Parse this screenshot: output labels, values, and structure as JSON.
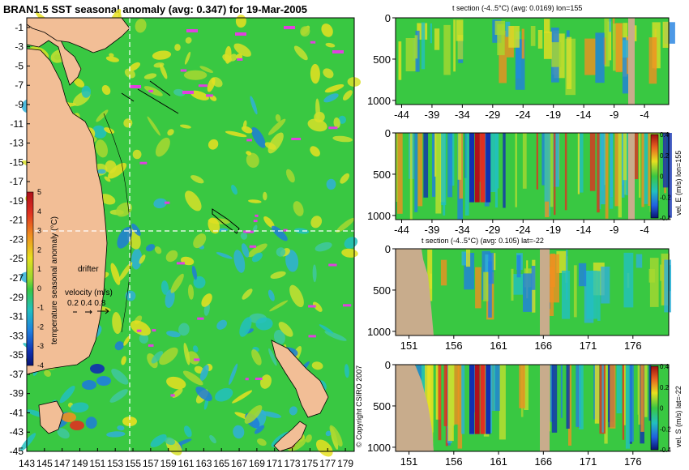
{
  "chart_data": [
    {
      "type": "heatmap",
      "title": "BRAN1.5 SST seasonal anomaly (avg: 0.347) for 19-Mar-2005",
      "y_ticks": [
        "-1",
        "-3",
        "-5",
        "-7",
        "-9",
        "-11",
        "-13",
        "-15",
        "-17",
        "-19",
        "-21",
        "-23",
        "-25",
        "-27",
        "-29",
        "-31",
        "-33",
        "-35",
        "-37",
        "-39",
        "-41",
        "-43",
        "-45"
      ],
      "x_ticks": [
        "143",
        "145",
        "147",
        "149",
        "151",
        "153",
        "155",
        "157",
        "159",
        "161",
        "163",
        "165",
        "167",
        "169",
        "171",
        "173",
        "175",
        "177",
        "179"
      ],
      "xlim": [
        143,
        180
      ],
      "ylim": [
        -45,
        0
      ],
      "section_lon": 155,
      "section_lat": -22,
      "colorbar": {
        "label": "temperature seasonal anomaly (°C)",
        "ticks": [
          "5",
          "4",
          "3",
          "2",
          "1",
          "0",
          "-1",
          "-2",
          "-3",
          "-4"
        ],
        "range": [
          -4,
          5
        ]
      },
      "annotations": {
        "drifter": "drifter",
        "velocity_title": "velocity (m/s)",
        "velocity_scale": "0.2 0.4 0.8"
      },
      "colors": {
        "land": "#f2be96",
        "anomaly_mid": "#39c842",
        "positive": "#e8e020",
        "negative": "#1e7cd8",
        "drifter": "#e040e0"
      }
    },
    {
      "type": "heatmap",
      "title": "t section (-4..5°C) (avg: 0.0169) lon=155",
      "x_ticks": [
        "-44",
        "-39",
        "-34",
        "-29",
        "-24",
        "-19",
        "-14",
        "-9",
        "-4"
      ],
      "y_ticks": [
        "0",
        "500",
        "1000"
      ],
      "xlim": [
        -45,
        0
      ],
      "ylim": [
        1050,
        0
      ]
    },
    {
      "type": "heatmap",
      "title": "",
      "x_ticks": [
        "-44",
        "-39",
        "-34",
        "-29",
        "-24",
        "-19",
        "-14",
        "-9",
        "-4"
      ],
      "y_ticks": [
        "0",
        "500",
        "1000"
      ],
      "colorbar": {
        "label": "vel. E (m/s) lon=155",
        "ticks": [
          "0.4",
          "0.2",
          "0",
          "-0.2",
          "-0.4"
        ],
        "range": [
          -0.4,
          0.4
        ]
      }
    },
    {
      "type": "heatmap",
      "title": "t section (-4..5°C) (avg: 0.105) lat=-22",
      "x_ticks": [
        "151",
        "156",
        "161",
        "166",
        "171",
        "176"
      ],
      "y_ticks": [
        "0",
        "500",
        "1000"
      ],
      "xlim": [
        149.5,
        180
      ]
    },
    {
      "type": "heatmap",
      "title": "",
      "x_ticks": [
        "151",
        "156",
        "161",
        "166",
        "171",
        "176"
      ],
      "y_ticks": [
        "0",
        "500",
        "1000"
      ],
      "colorbar": {
        "label": "vel. S (m/s) lat=-22",
        "ticks": [
          "0.4",
          "0.2",
          "0",
          "-0.2",
          "-0.4"
        ],
        "range": [
          -0.4,
          0.4
        ]
      }
    }
  ],
  "copyright": "© Copyright CSIRO 2007"
}
